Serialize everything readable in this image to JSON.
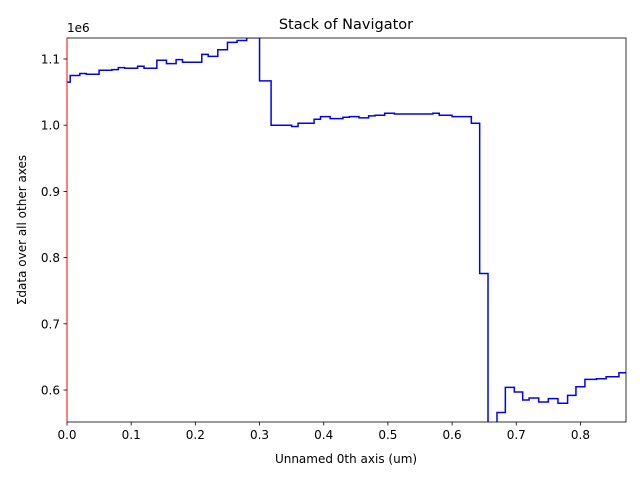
{
  "chart_data": {
    "type": "step",
    "title": "Stack of  Navigator",
    "xlabel": "Unnamed 0th axis (um)",
    "ylabel": "Σdata over all other axes",
    "offset_text": "1e6",
    "x": [
      0,
      0.005,
      0.02,
      0.03,
      0.05,
      0.07,
      0.08,
      0.09,
      0.11,
      0.12,
      0.14,
      0.155,
      0.17,
      0.18,
      0.21,
      0.22,
      0.235,
      0.25,
      0.265,
      0.28,
      0.3,
      0.318,
      0.35,
      0.36,
      0.385,
      0.395,
      0.41,
      0.43,
      0.44,
      0.455,
      0.47,
      0.48,
      0.495,
      0.51,
      0.57,
      0.58,
      0.6,
      0.63,
      0.643,
      0.656,
      0.67,
      0.683,
      0.697,
      0.71,
      0.72,
      0.735,
      0.75,
      0.765,
      0.78,
      0.793,
      0.807,
      0.825,
      0.84,
      0.86
    ],
    "series": [
      {
        "name": "Navigator",
        "color": "#0000ff",
        "values": [
          1065000,
          1075000,
          1078000,
          1077000,
          1083000,
          1084000,
          1087000,
          1086000,
          1089000,
          1086000,
          1098000,
          1093000,
          1099000,
          1095000,
          1107000,
          1104000,
          1114000,
          1125000,
          1128000,
          1132000,
          1067000,
          1000000,
          998000,
          1003000,
          1009000,
          1013000,
          1010000,
          1012000,
          1013000,
          1011000,
          1014000,
          1015000,
          1018000,
          1017000,
          1018000,
          1015000,
          1013000,
          1003000,
          776000,
          550000,
          566000,
          604000,
          597000,
          585000,
          588000,
          582000,
          587000,
          580000,
          592000,
          605000,
          616000,
          617000,
          620000,
          626000
        ]
      }
    ],
    "xlim": [
      0,
      0.871
    ],
    "ylim": [
      551700,
      1131700
    ],
    "xticks": [
      {
        "value": 0,
        "label": "0.0"
      },
      0.1,
      0.2,
      0.3,
      0.4,
      0.5,
      0.6,
      0.7,
      0.8
    ],
    "yticks": [
      {
        "value": 600000,
        "label": "0.6"
      },
      {
        "value": 700000,
        "label": "0.7"
      },
      {
        "value": 800000,
        "label": "0.8"
      },
      {
        "value": 900000,
        "label": "0.9"
      },
      {
        "value": 1000000,
        "label": "1.0"
      },
      {
        "value": 1100000,
        "label": "1.1"
      }
    ]
  }
}
